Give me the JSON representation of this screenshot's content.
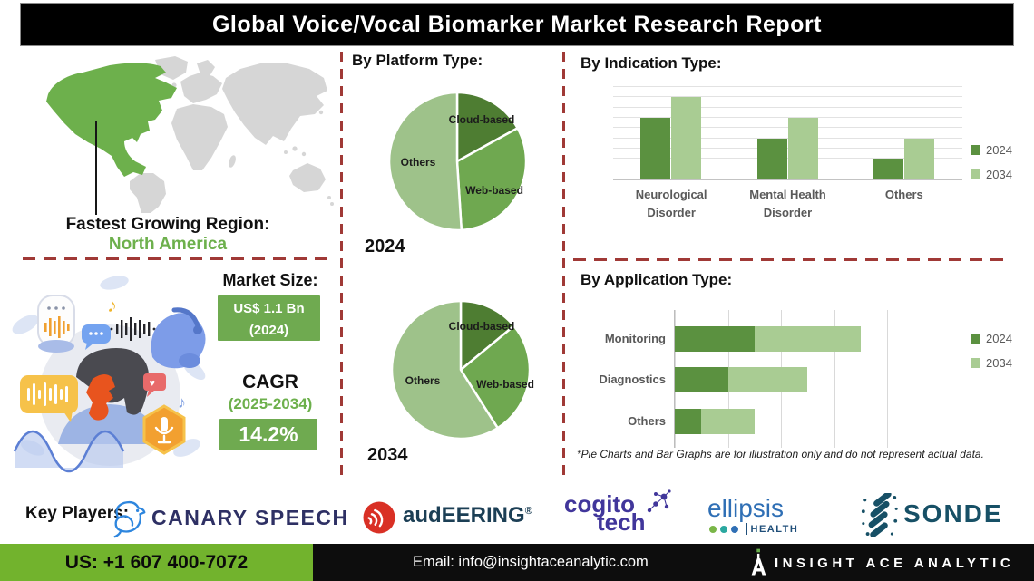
{
  "title": "Global Voice/Vocal Biomarker Market Research Report",
  "map": {
    "label": "Fastest Growing Region:",
    "region": "North America",
    "region_color": "#6db04c",
    "land_gray": "#d6d6d6"
  },
  "market_size": {
    "heading": "Market Size:",
    "value_line1": "US$ 1.1 Bn",
    "value_line2": "(2024)",
    "cagr_label": "CAGR",
    "cagr_period": "(2025-2034)",
    "cagr_value": "14.2%",
    "box_color": "#6faa50"
  },
  "chart_data": [
    {
      "id": "platform_2024",
      "type": "pie",
      "title": "By Platform Type:",
      "year_label": "2024",
      "slices": [
        {
          "label": "Cloud-based",
          "value": 17,
          "color": "#4e7d32"
        },
        {
          "label": "Web-based",
          "value": 32,
          "color": "#6fa850"
        },
        {
          "label": "Others",
          "value": 51,
          "color": "#9ec28a"
        }
      ]
    },
    {
      "id": "platform_2034",
      "type": "pie",
      "year_label": "2034",
      "slices": [
        {
          "label": "Cloud-based",
          "value": 14,
          "color": "#4e7d32"
        },
        {
          "label": "Web-based",
          "value": 27,
          "color": "#6fa850"
        },
        {
          "label": "Others",
          "value": 59,
          "color": "#9ec28a"
        }
      ]
    },
    {
      "id": "indication",
      "type": "bar",
      "title": "By  Indication Type:",
      "categories": [
        "Neurological\nDisorder",
        "Mental Health\nDisorder",
        "Others"
      ],
      "series": [
        {
          "name": "2024",
          "color": "#5b9140",
          "values": [
            6,
            4,
            2
          ]
        },
        {
          "name": "2034",
          "color": "#a9cc93",
          "values": [
            8,
            6,
            4
          ]
        }
      ],
      "ylim": [
        0,
        9
      ],
      "grid": true,
      "legend_position": "right"
    },
    {
      "id": "application",
      "type": "bar",
      "orientation": "horizontal",
      "stacked": true,
      "title": "By Application Type:",
      "categories": [
        "Monitoring",
        "Diagnostics",
        "Others"
      ],
      "series": [
        {
          "name": "2024",
          "color": "#5b9140",
          "values": [
            1.5,
            1.0,
            0.5
          ]
        },
        {
          "name": "2034",
          "color": "#a9cc93",
          "values": [
            2.0,
            1.5,
            1.0
          ]
        }
      ],
      "xlim": [
        0,
        4
      ],
      "grid": true,
      "legend_position": "right"
    }
  ],
  "disclaimer": "*Pie Charts and Bar Graphs are for illustration only and do not represent actual data.",
  "key_players": {
    "heading": "Key Players:",
    "canary": {
      "name": "CANARY SPEECH",
      "text_color": "#2e3064",
      "icon": "canary-bird-icon",
      "icon_color": "#2e86de"
    },
    "audeering": {
      "name": "audEERING",
      "reg": "®",
      "text_color": "#1c3f55",
      "icon": "sound-waves-icon",
      "icon_color": "#d93025"
    },
    "cogito": {
      "line1": "cogito",
      "line2": "tech",
      "text_color": "#41369b",
      "icon": "network-dots-icon"
    },
    "ellipsis": {
      "line1": "ellipsis",
      "line2": "HEALTH",
      "text_color": "#2f6fb5",
      "sub_color": "#1f4e79",
      "icon": "three-dots-icon",
      "dot_colors": [
        "#7ab648",
        "#2aa8a0",
        "#2f6fb5"
      ]
    },
    "sonde": {
      "name": "SONDE",
      "text_color": "#175066",
      "icon": "dotted-s-icon"
    }
  },
  "footer": {
    "phone": "US: +1 607 400-7072",
    "phone_bg": "#72b32d",
    "email": "Email: info@insightaceanalytic.com",
    "brand": "INSIGHT ACE ANALYTIC",
    "brand_icon": "insight-ace-a-mark",
    "bg": "#0d0d0d"
  },
  "styles": {
    "dash_color": "#a03936"
  }
}
